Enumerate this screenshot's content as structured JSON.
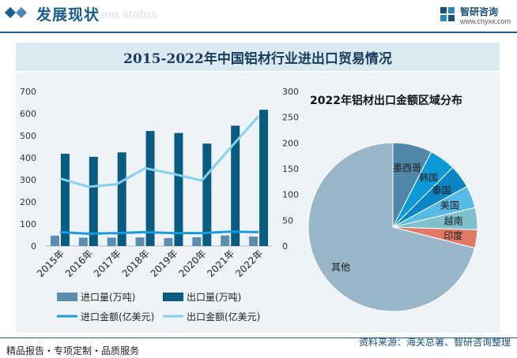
{
  "header": {
    "title": "发展现状",
    "subtitle_en": "ent status",
    "logo_brand": "智研咨询",
    "logo_url": "www.chyxx.com"
  },
  "banner_title": "2015-2022年中国铝材行业进出口贸易情况",
  "pie_title": "2022年铝材出口金额区域分布",
  "footer": {
    "left": "精品报告・专项定制・品质服务",
    "right": "资料来源：海关总署、智研咨询整理"
  },
  "colors": {
    "import_vol": "#5b8dae",
    "export_vol": "#0a5b80",
    "import_amt": "#1a9be0",
    "export_amt": "#86cfef"
  },
  "chart_data": [
    {
      "type": "bar",
      "categories": [
        "2015年",
        "2016年",
        "2017年",
        "2018年",
        "2019年",
        "2020年",
        "2021年",
        "2022年"
      ],
      "series": [
        {
          "name": "进口量(万吨)",
          "type": "bar",
          "axis": "left",
          "values": [
            47,
            38,
            38,
            39,
            36,
            40,
            48,
            43
          ]
        },
        {
          "name": "出口量(万吨)",
          "type": "bar",
          "axis": "left",
          "values": [
            418,
            404,
            424,
            521,
            512,
            464,
            545,
            617
          ]
        },
        {
          "name": "进口金额(亿美元)",
          "type": "line",
          "axis": "right",
          "values": [
            27,
            24,
            25,
            27,
            25,
            25,
            28,
            27
          ]
        },
        {
          "name": "出口金额(亿美元)",
          "type": "line",
          "axis": "right",
          "values": [
            131,
            115,
            120,
            151,
            140,
            127,
            190,
            252
          ]
        }
      ],
      "y_left": {
        "min": 0,
        "max": 700,
        "ticks": [
          "0",
          "100",
          "200",
          "300",
          "400",
          "500",
          "600",
          "700"
        ]
      },
      "y_right": {
        "min": 0,
        "max": 300,
        "ticks": [
          "0",
          "50",
          "100",
          "150",
          "200",
          "250",
          "300"
        ]
      },
      "legend_position": "bottom"
    },
    {
      "type": "pie",
      "title": "2022年铝材出口金额区域分布",
      "slices": [
        {
          "label": "墨西哥",
          "value": 7.5,
          "color": "#4f87a9"
        },
        {
          "label": "韩国",
          "value": 5.0,
          "color": "#0a9ad8"
        },
        {
          "label": "泰国",
          "value": 4.5,
          "color": "#0a86c4"
        },
        {
          "label": "美国",
          "value": 4.3,
          "color": "#58b9e4"
        },
        {
          "label": "越南",
          "value": 4.2,
          "color": "#7fc0cf"
        },
        {
          "label": "印度",
          "value": 3.5,
          "color": "#e07a66"
        },
        {
          "label": "其他",
          "value": 71.0,
          "color": "#9ab7c9"
        }
      ]
    }
  ]
}
